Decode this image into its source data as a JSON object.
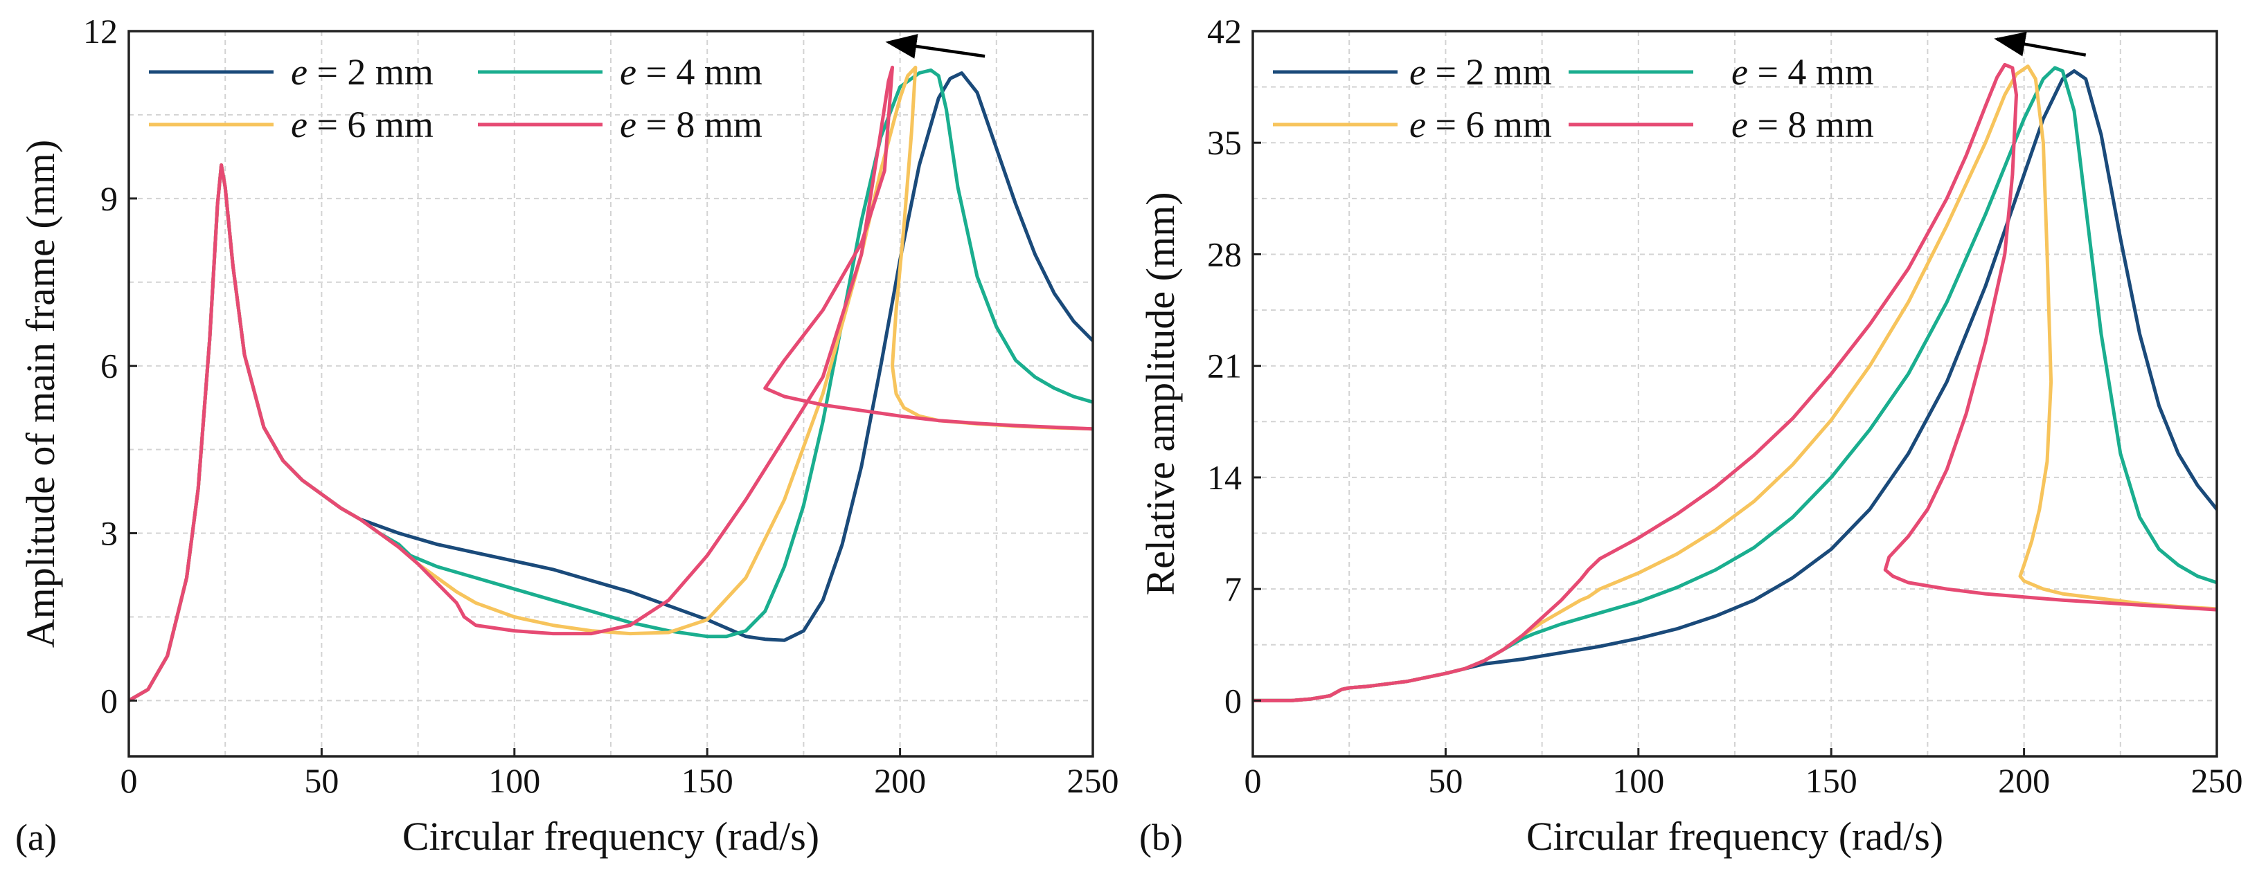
{
  "chart_data": [
    {
      "type": "line",
      "panel_label": "(a)",
      "title": "",
      "xlabel": "Circular frequency (rad/s)",
      "ylabel": "Amplitude of main frame (mm)",
      "xlim": [
        0,
        250
      ],
      "ylim": [
        -1,
        12
      ],
      "xticks": [
        0,
        50,
        100,
        150,
        200,
        250
      ],
      "yticks": [
        0,
        3,
        6,
        9,
        12
      ],
      "grid": true,
      "legend": "top-left, 2 columns",
      "arrow": {
        "from": [
          222,
          11.55
        ],
        "to": [
          197,
          11.8
        ],
        "meaning": "peak shifts left as e increases"
      },
      "series": [
        {
          "name": "e = 2 mm",
          "legend_prefix": "e",
          "legend_suffix": " = 2 mm",
          "color": "#1a4a7a",
          "x": [
            0,
            5,
            10,
            15,
            18,
            21,
            23,
            24,
            25,
            27,
            30,
            35,
            40,
            45,
            50,
            55,
            60,
            70,
            80,
            90,
            100,
            110,
            120,
            130,
            140,
            150,
            155,
            160,
            165,
            170,
            175,
            180,
            185,
            190,
            195,
            200,
            205,
            210,
            213,
            216,
            220,
            225,
            230,
            235,
            240,
            245,
            250
          ],
          "y": [
            0,
            0.2,
            0.8,
            2.2,
            3.8,
            6.5,
            8.9,
            9.6,
            9.2,
            7.8,
            6.2,
            4.9,
            4.3,
            3.95,
            3.7,
            3.45,
            3.25,
            3.0,
            2.8,
            2.65,
            2.5,
            2.35,
            2.15,
            1.95,
            1.7,
            1.45,
            1.3,
            1.15,
            1.1,
            1.08,
            1.25,
            1.8,
            2.8,
            4.2,
            6.0,
            7.9,
            9.6,
            10.8,
            11.15,
            11.25,
            10.9,
            9.9,
            8.9,
            8.0,
            7.3,
            6.8,
            6.45
          ]
        },
        {
          "name": "e = 4 mm",
          "legend_prefix": "e",
          "legend_suffix": " = 4 mm",
          "color": "#1aae8f",
          "x": [
            0,
            5,
            10,
            15,
            18,
            21,
            23,
            24,
            25,
            27,
            30,
            35,
            40,
            45,
            50,
            55,
            60,
            65,
            70,
            73,
            80,
            90,
            100,
            110,
            120,
            130,
            140,
            150,
            155,
            160,
            165,
            170,
            175,
            180,
            185,
            190,
            195,
            200,
            205,
            208,
            210,
            212,
            215,
            220,
            225,
            230,
            235,
            240,
            245,
            250
          ],
          "y": [
            0,
            0.2,
            0.8,
            2.2,
            3.8,
            6.5,
            8.9,
            9.6,
            9.2,
            7.8,
            6.2,
            4.9,
            4.3,
            3.95,
            3.7,
            3.45,
            3.25,
            3.0,
            2.8,
            2.6,
            2.4,
            2.2,
            2.0,
            1.8,
            1.6,
            1.4,
            1.25,
            1.15,
            1.15,
            1.25,
            1.6,
            2.4,
            3.5,
            5.0,
            6.8,
            8.6,
            10.1,
            11.0,
            11.25,
            11.3,
            11.2,
            10.6,
            9.2,
            7.6,
            6.7,
            6.1,
            5.8,
            5.6,
            5.45,
            5.35
          ]
        },
        {
          "name": "e = 6 mm",
          "legend_prefix": "e",
          "legend_suffix": " = 6 mm",
          "color": "#f7c45c",
          "x": [
            0,
            5,
            10,
            15,
            18,
            21,
            23,
            24,
            25,
            27,
            30,
            35,
            40,
            45,
            50,
            55,
            60,
            65,
            70,
            75,
            80,
            85,
            90,
            100,
            110,
            120,
            130,
            140,
            150,
            160,
            170,
            180,
            190,
            195,
            200,
            202,
            204,
            203,
            201,
            199,
            198,
            199,
            201,
            205,
            210,
            220,
            230,
            240,
            250
          ],
          "y": [
            0,
            0.2,
            0.8,
            2.2,
            3.8,
            6.5,
            8.9,
            9.6,
            9.2,
            7.8,
            6.2,
            4.9,
            4.3,
            3.95,
            3.7,
            3.45,
            3.25,
            3.0,
            2.75,
            2.45,
            2.2,
            1.95,
            1.75,
            1.5,
            1.35,
            1.25,
            1.2,
            1.22,
            1.45,
            2.2,
            3.6,
            5.5,
            8.0,
            9.5,
            10.8,
            11.2,
            11.35,
            10.2,
            8.5,
            7.0,
            6.0,
            5.5,
            5.25,
            5.1,
            5.02,
            4.96,
            4.92,
            4.89,
            4.87
          ]
        },
        {
          "name": "e = 8 mm",
          "legend_prefix": "e",
          "legend_suffix": " = 8 mm",
          "color": "#e64a73",
          "x": [
            0,
            5,
            10,
            15,
            18,
            21,
            23,
            24,
            25,
            27,
            30,
            35,
            40,
            45,
            50,
            55,
            60,
            65,
            70,
            75,
            80,
            85,
            87,
            90,
            100,
            110,
            120,
            130,
            140,
            150,
            160,
            170,
            180,
            190,
            195,
            197,
            198,
            196,
            190,
            180,
            170,
            165,
            170,
            180,
            190,
            200,
            210,
            220,
            230,
            240,
            250
          ],
          "y": [
            0,
            0.2,
            0.8,
            2.2,
            3.8,
            6.5,
            8.9,
            9.6,
            9.2,
            7.8,
            6.2,
            4.9,
            4.3,
            3.95,
            3.7,
            3.45,
            3.25,
            3.0,
            2.75,
            2.45,
            2.1,
            1.75,
            1.5,
            1.35,
            1.25,
            1.2,
            1.2,
            1.35,
            1.8,
            2.6,
            3.6,
            4.7,
            5.8,
            8.0,
            10.2,
            11.1,
            11.35,
            9.5,
            8.2,
            7.0,
            6.1,
            5.6,
            5.45,
            5.3,
            5.2,
            5.1,
            5.02,
            4.97,
            4.93,
            4.9,
            4.87
          ]
        }
      ]
    },
    {
      "type": "line",
      "panel_label": "(b)",
      "title": "",
      "xlabel": "Circular frequency (rad/s)",
      "ylabel": "Relative amplitude (mm)",
      "xlim": [
        0,
        250
      ],
      "ylim": [
        -3.5,
        42
      ],
      "xticks": [
        0,
        50,
        100,
        150,
        200,
        250
      ],
      "yticks": [
        0,
        7,
        14,
        21,
        28,
        35,
        42
      ],
      "grid": true,
      "legend": "top-left, 2 columns",
      "arrow": {
        "from": [
          216,
          40.5
        ],
        "to": [
          193,
          41.5
        ],
        "meaning": "peak shifts left as e increases"
      },
      "series": [
        {
          "name": "e = 2 mm",
          "legend_prefix": "e",
          "legend_suffix": " = 2 mm",
          "color": "#1a4a7a",
          "x": [
            0,
            10,
            15,
            20,
            23,
            25,
            30,
            40,
            50,
            55,
            60,
            70,
            80,
            90,
            100,
            110,
            120,
            130,
            140,
            150,
            160,
            170,
            180,
            190,
            195,
            200,
            205,
            210,
            213,
            216,
            220,
            225,
            230,
            235,
            240,
            245,
            250
          ],
          "y": [
            0,
            0,
            0.1,
            0.3,
            0.7,
            0.8,
            0.9,
            1.2,
            1.7,
            2.0,
            2.3,
            2.6,
            3.0,
            3.4,
            3.9,
            4.5,
            5.3,
            6.3,
            7.7,
            9.5,
            12.0,
            15.5,
            20.0,
            26.0,
            29.5,
            33.0,
            36.5,
            39.0,
            39.5,
            39.0,
            35.5,
            29.0,
            23.0,
            18.5,
            15.5,
            13.5,
            12.0
          ]
        },
        {
          "name": "e = 4 mm",
          "legend_prefix": "e",
          "legend_suffix": " = 4 mm",
          "color": "#1aae8f",
          "x": [
            0,
            10,
            15,
            20,
            23,
            25,
            30,
            40,
            50,
            55,
            60,
            65,
            70,
            73,
            80,
            90,
            100,
            110,
            120,
            130,
            140,
            150,
            160,
            170,
            180,
            190,
            195,
            200,
            205,
            208,
            210,
            213,
            216,
            220,
            225,
            230,
            235,
            240,
            245,
            250
          ],
          "y": [
            0,
            0,
            0.1,
            0.3,
            0.7,
            0.8,
            0.9,
            1.2,
            1.7,
            2.0,
            2.5,
            3.2,
            3.9,
            4.2,
            4.8,
            5.5,
            6.2,
            7.1,
            8.2,
            9.6,
            11.5,
            14.0,
            17.0,
            20.5,
            25.0,
            30.5,
            33.5,
            36.5,
            39.0,
            39.7,
            39.5,
            37.0,
            31.0,
            23.0,
            15.5,
            11.5,
            9.5,
            8.5,
            7.8,
            7.4
          ]
        },
        {
          "name": "e = 6 mm",
          "legend_prefix": "e",
          "legend_suffix": " = 6 mm",
          "color": "#f7c45c",
          "x": [
            0,
            10,
            15,
            20,
            23,
            25,
            30,
            40,
            50,
            55,
            60,
            65,
            70,
            75,
            80,
            85,
            87,
            90,
            100,
            110,
            120,
            130,
            140,
            150,
            160,
            170,
            180,
            190,
            195,
            198,
            201,
            203,
            205,
            206,
            207,
            206,
            204,
            202,
            200,
            199,
            200,
            205,
            210,
            220,
            230,
            240,
            250
          ],
          "y": [
            0,
            0,
            0.1,
            0.3,
            0.7,
            0.8,
            0.9,
            1.2,
            1.7,
            2.0,
            2.5,
            3.2,
            4.1,
            4.9,
            5.6,
            6.3,
            6.5,
            7.0,
            8.0,
            9.2,
            10.7,
            12.5,
            14.8,
            17.6,
            21.0,
            25.0,
            29.8,
            35.0,
            38.0,
            39.3,
            39.8,
            39.0,
            35.0,
            28.0,
            20.0,
            15.0,
            12.0,
            10.0,
            8.5,
            7.8,
            7.5,
            7.0,
            6.7,
            6.4,
            6.1,
            5.9,
            5.75
          ]
        },
        {
          "name": "e = 8 mm",
          "legend_prefix": "e",
          "legend_suffix": " = 8 mm",
          "color": "#e64a73",
          "x": [
            0,
            10,
            15,
            20,
            23,
            25,
            30,
            40,
            50,
            55,
            60,
            65,
            70,
            75,
            80,
            85,
            87,
            90,
            100,
            110,
            120,
            130,
            140,
            150,
            160,
            170,
            180,
            185,
            190,
            193,
            195,
            197,
            198,
            197,
            195,
            190,
            185,
            180,
            175,
            170,
            165,
            164,
            166,
            170,
            180,
            190,
            200,
            210,
            220,
            230,
            240,
            250
          ],
          "y": [
            0,
            0,
            0.1,
            0.3,
            0.7,
            0.8,
            0.9,
            1.2,
            1.7,
            2.0,
            2.5,
            3.2,
            4.1,
            5.2,
            6.3,
            7.6,
            8.2,
            8.9,
            10.2,
            11.7,
            13.4,
            15.4,
            17.7,
            20.5,
            23.6,
            27.1,
            31.5,
            34.2,
            37.3,
            39.1,
            39.9,
            39.7,
            38.0,
            33.0,
            28.0,
            22.5,
            18.0,
            14.5,
            12.0,
            10.3,
            9.0,
            8.2,
            7.8,
            7.4,
            7.0,
            6.7,
            6.5,
            6.3,
            6.15,
            6.0,
            5.85,
            5.7
          ]
        }
      ]
    }
  ]
}
